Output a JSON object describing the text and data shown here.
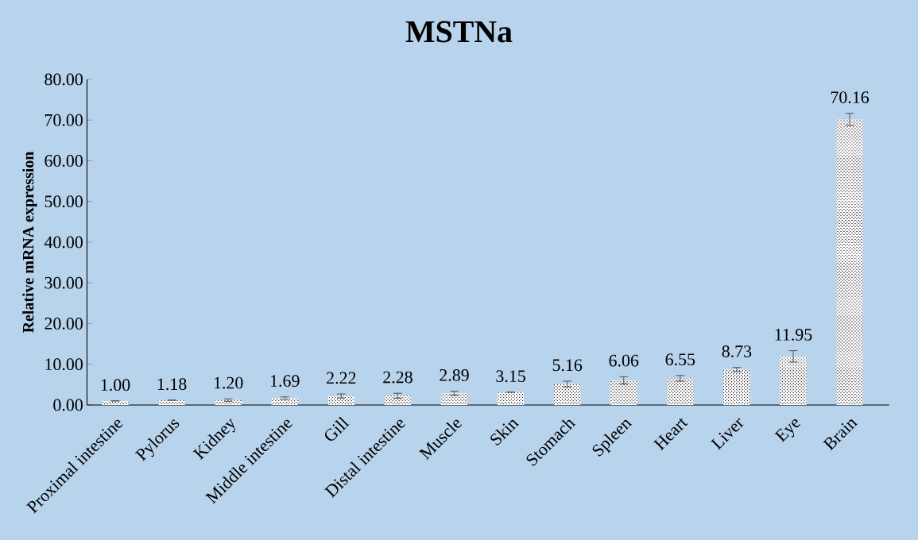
{
  "chart_data": {
    "type": "bar",
    "title": "MSTNa",
    "ylabel": "Relative mRNA expression",
    "categories": [
      "Proximal intestine",
      "Pylorus",
      "Kidney",
      "Middle intestine",
      "Gill",
      "Distal intestine",
      "Muscle",
      "Skin",
      "Stomach",
      "Spleen",
      "Heart",
      "Liver",
      "Eye",
      "Brain"
    ],
    "values": [
      1.0,
      1.18,
      1.2,
      1.69,
      2.22,
      2.28,
      2.89,
      3.15,
      5.16,
      6.06,
      6.55,
      8.73,
      11.95,
      70.16
    ],
    "errors": [
      null,
      null,
      0.3,
      0.3,
      0.5,
      0.6,
      0.5,
      null,
      0.7,
      0.9,
      0.7,
      0.5,
      1.4,
      1.5
    ],
    "value_labels": [
      "1.00",
      "1.18",
      "1.20",
      "1.69",
      "2.22",
      "2.28",
      "2.89",
      "3.15",
      "5.16",
      "6.06",
      "6.55",
      "8.73",
      "11.95",
      "70.16"
    ],
    "color": "#ffffff",
    "ylim": [
      0,
      80
    ],
    "yticks": [
      {
        "value": 0,
        "label": "0.00"
      },
      {
        "value": 10,
        "label": "10.00"
      },
      {
        "value": 20,
        "label": "20.00"
      },
      {
        "value": 30,
        "label": "30.00"
      },
      {
        "value": 40,
        "label": "40.00"
      },
      {
        "value": 50,
        "label": "50.00"
      },
      {
        "value": 60,
        "label": "60.00"
      },
      {
        "value": 70,
        "label": "70.00"
      },
      {
        "value": 80,
        "label": "80.00"
      }
    ],
    "grid": false
  }
}
